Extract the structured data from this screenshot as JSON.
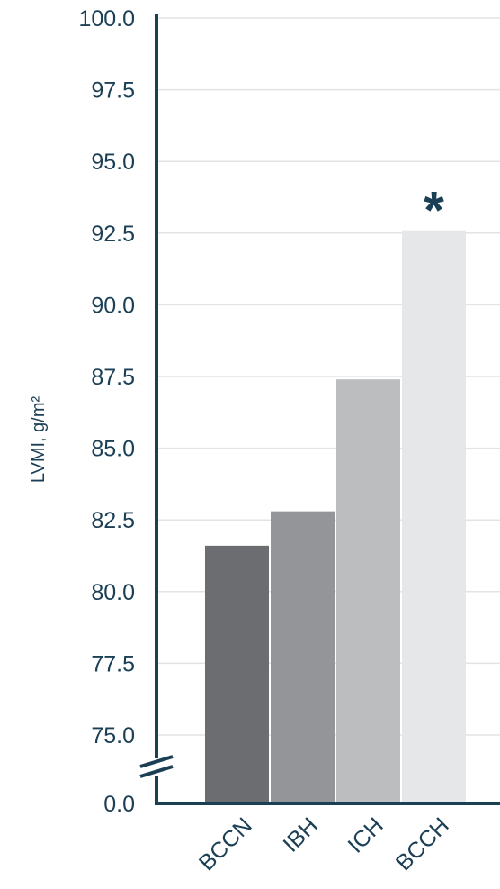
{
  "chart_data": {
    "type": "bar",
    "categories": [
      "BCCN",
      "IBH",
      "ICH",
      "BCCH"
    ],
    "values": [
      81.6,
      82.8,
      87.4,
      92.6
    ],
    "ylabel": "LVMI, g/m²",
    "ylim": [
      75.0,
      100.0
    ],
    "yticks": [
      "0.0",
      "75.0",
      "77.5",
      "80.0",
      "82.5",
      "85.0",
      "87.5",
      "90.0",
      "92.5",
      "95.0",
      "97.5",
      "100.0"
    ],
    "axis_break": true,
    "bar_colors": [
      "#6c6d70",
      "#939598",
      "#bcbdbf",
      "#e6e7e8"
    ],
    "grid": true,
    "annotations": [
      {
        "text": "*",
        "category": "BCCH"
      }
    ],
    "axis_color": "#1b3f55"
  }
}
